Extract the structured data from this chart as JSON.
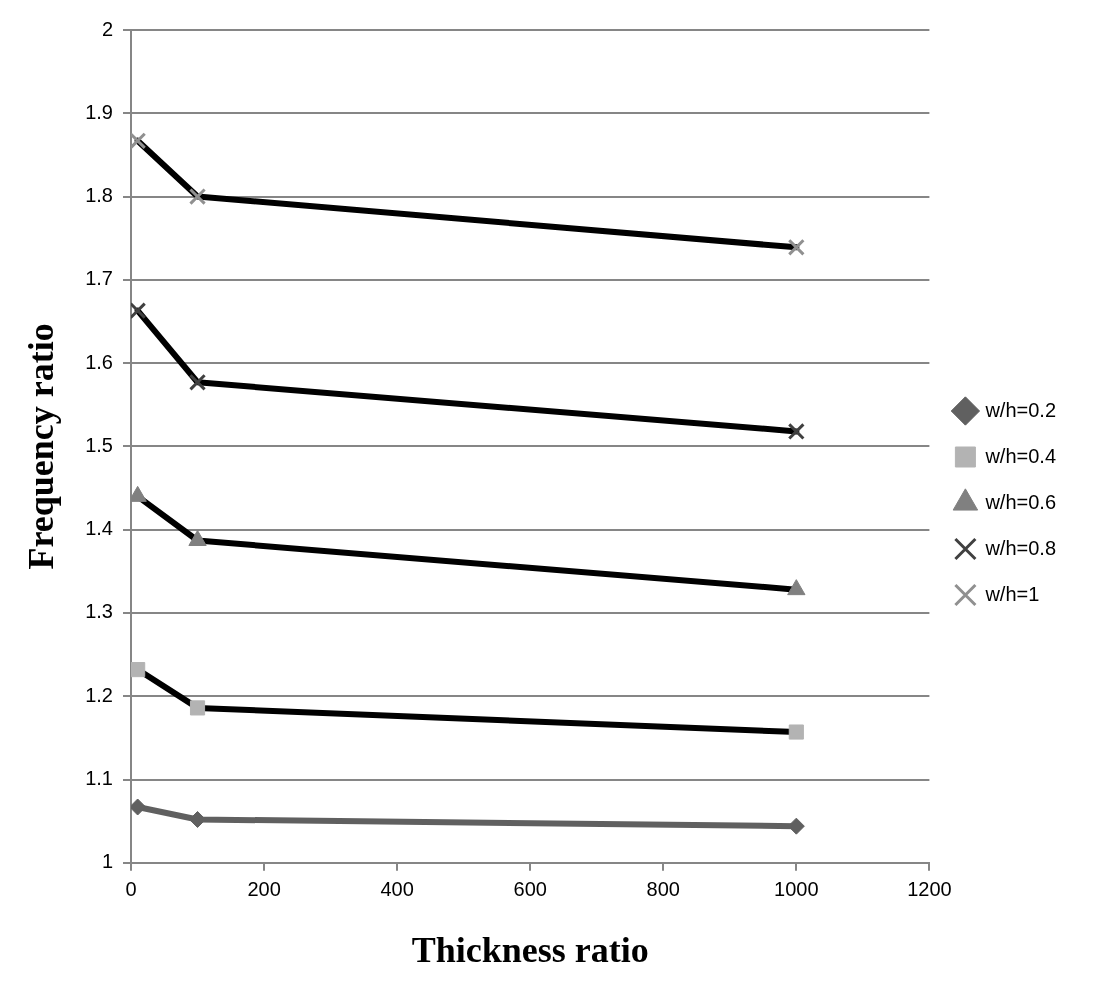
{
  "chart_data": {
    "type": "line",
    "xlabel": "Thickness ratio",
    "ylabel": "Frequency ratio",
    "x": [
      10,
      100,
      1000
    ],
    "xlim": [
      0,
      1200
    ],
    "xticks": [
      0,
      200,
      400,
      600,
      800,
      1000,
      1200
    ],
    "ylim": [
      1,
      2
    ],
    "yticks": [
      1,
      1.1,
      1.2,
      1.3,
      1.4,
      1.5,
      1.6,
      1.7,
      1.8,
      1.9,
      2
    ],
    "grid": "y",
    "legend": "right",
    "line_style": "solid",
    "series": [
      {
        "name": "w/h=0.2",
        "color": "#606060",
        "colors": [
          "#606060",
          "#606060",
          "#606060"
        ],
        "marker": "diamond",
        "values": [
          1.067,
          1.052,
          1.044
        ]
      },
      {
        "name": "w/h=0.4",
        "color": "#000000",
        "colors": [
          "#b3b3b3",
          "#b3b3b3",
          "#b3b3b3"
        ],
        "marker": "square",
        "values": [
          1.232,
          1.186,
          1.157
        ]
      },
      {
        "name": "w/h=0.6",
        "color": "#000000",
        "colors": [
          "#808080",
          "#808080",
          "#808080"
        ],
        "marker": "triangle",
        "values": [
          1.44,
          1.387,
          1.328
        ]
      },
      {
        "name": "w/h=0.8",
        "color": "#000000",
        "colors": [
          "#404040",
          "#404040",
          "#404040"
        ],
        "marker": "cross",
        "values": [
          1.663,
          1.577,
          1.518
        ]
      },
      {
        "name": "w/h=1",
        "color": "#000000",
        "colors": [
          "#909090",
          "#909090",
          "#909090"
        ],
        "marker": "cross",
        "values": [
          1.867,
          1.8,
          1.739
        ]
      }
    ]
  }
}
